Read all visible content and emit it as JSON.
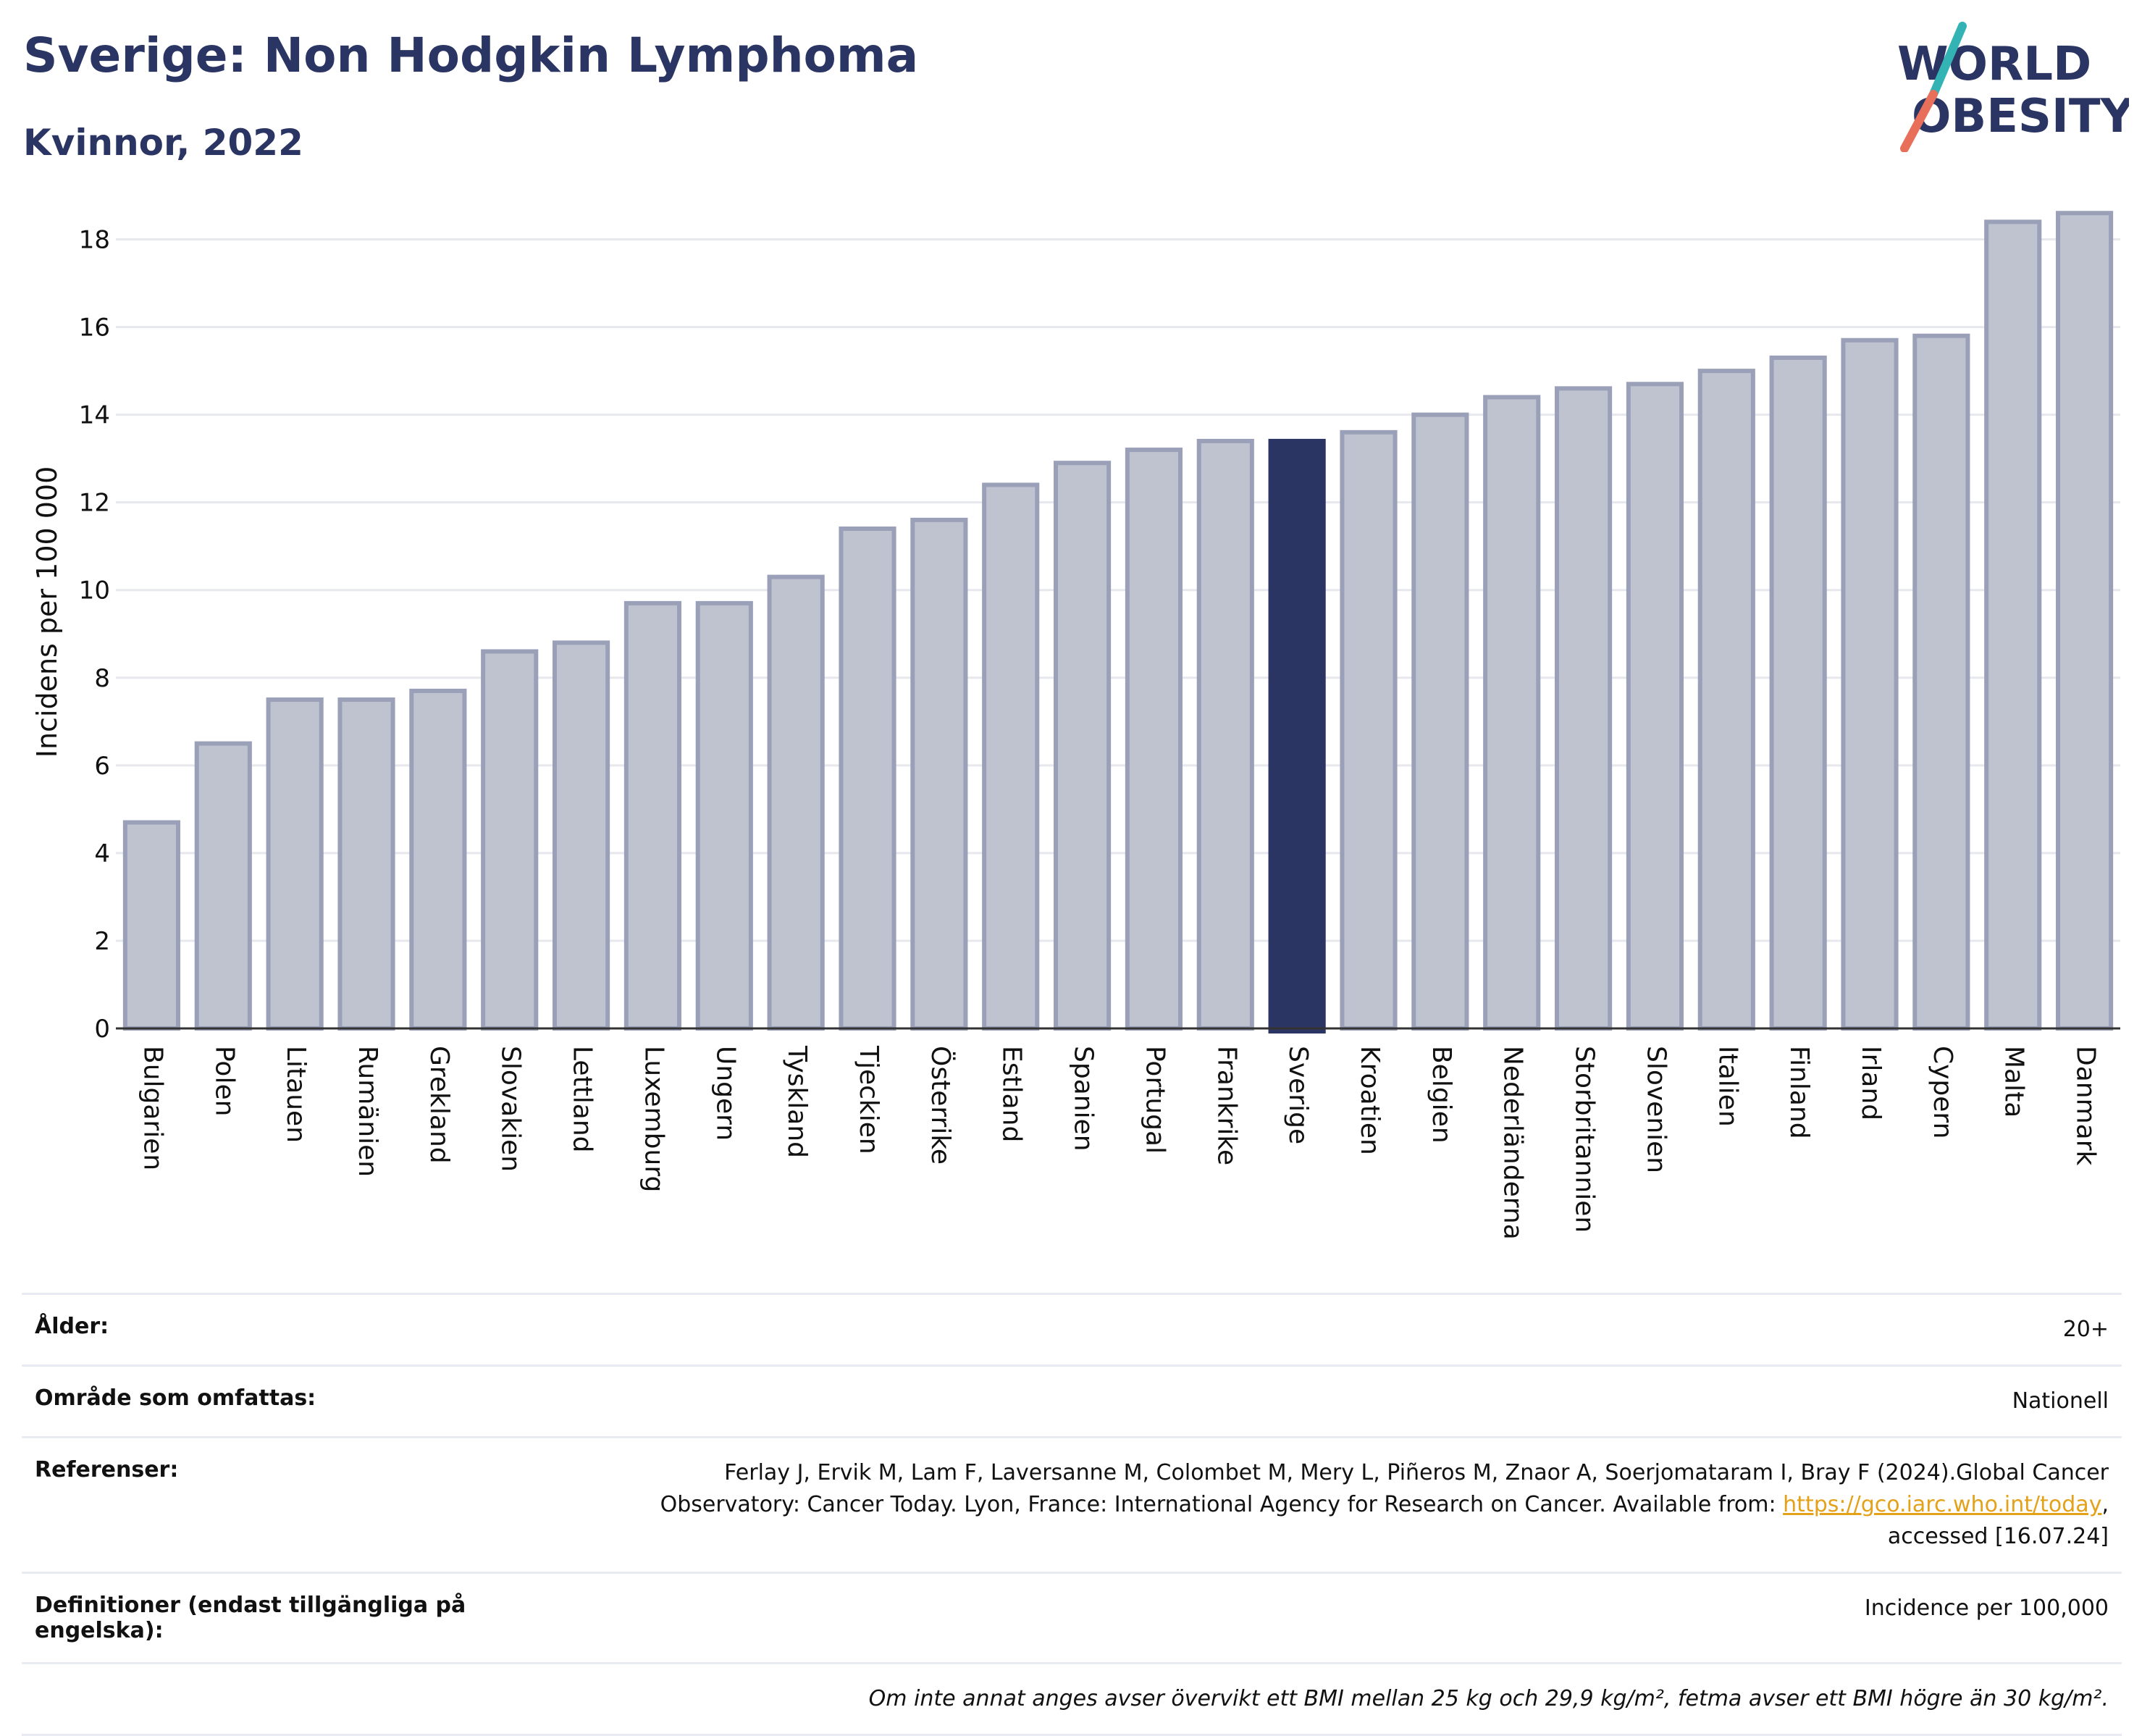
{
  "header": {
    "title": "Sverige: Non Hodgkin Lymphoma",
    "subtitle": "Kvinnor, 2022"
  },
  "logo": {
    "line1": "WORLD",
    "line2": "OBESITY"
  },
  "chart_data": {
    "type": "bar",
    "ylabel": "Incidens per 100 000",
    "ylim": [
      0,
      19
    ],
    "yticks": [
      0,
      2,
      4,
      6,
      8,
      10,
      12,
      14,
      16,
      18
    ],
    "grid": true,
    "highlight": "Sverige",
    "colors": {
      "bar": "#bfc3d0",
      "bar_edge": "#9aa0b8",
      "highlight": "#2b3563"
    },
    "categories": [
      "Bulgarien",
      "Polen",
      "Litauen",
      "Rumänien",
      "Grekland",
      "Slovakien",
      "Lettland",
      "Luxemburg",
      "Ungern",
      "Tyskland",
      "Tjeckien",
      "Österrike",
      "Estland",
      "Spanien",
      "Portugal",
      "Frankrike",
      "Sverige",
      "Kroatien",
      "Belgien",
      "Nederländerna",
      "Storbritannien",
      "Slovenien",
      "Italien",
      "Finland",
      "Irland",
      "Cypern",
      "Malta",
      "Danmark"
    ],
    "values": [
      4.7,
      6.5,
      7.5,
      7.5,
      7.7,
      8.6,
      8.8,
      9.7,
      9.7,
      10.3,
      11.4,
      11.6,
      12.4,
      12.9,
      13.2,
      13.4,
      13.4,
      13.6,
      14.0,
      14.4,
      14.6,
      14.7,
      15.0,
      15.3,
      15.7,
      15.8,
      18.4,
      18.6
    ]
  },
  "info": {
    "age_label": "Ålder:",
    "age_value": "20+",
    "area_label": "Område som omfattas:",
    "area_value": "Nationell",
    "refs_label": "Referenser:",
    "refs_text_1": "Ferlay J, Ervik M, Lam F, Laversanne M, Colombet M, Mery L, Piñeros M, Znaor A, Soerjomataram I, Bray F (2024).Global Cancer",
    "refs_text_2": "Observatory: Cancer Today. Lyon, France: International Agency for Research on Cancer. Available from: ",
    "refs_link": "https://gco.iarc.who.int/today",
    "refs_text_3": ",",
    "refs_text_4": "accessed [16.07.24]",
    "defs_label_1": "Definitioner (endast tillgängliga på",
    "defs_label_2": "engelska):",
    "defs_value": "Incidence per 100,000",
    "note": "Om inte annat anges avser övervikt ett BMI mellan 25 kg och 29,9 kg/m², fetma avser ett BMI högre än 30 kg/m²."
  }
}
